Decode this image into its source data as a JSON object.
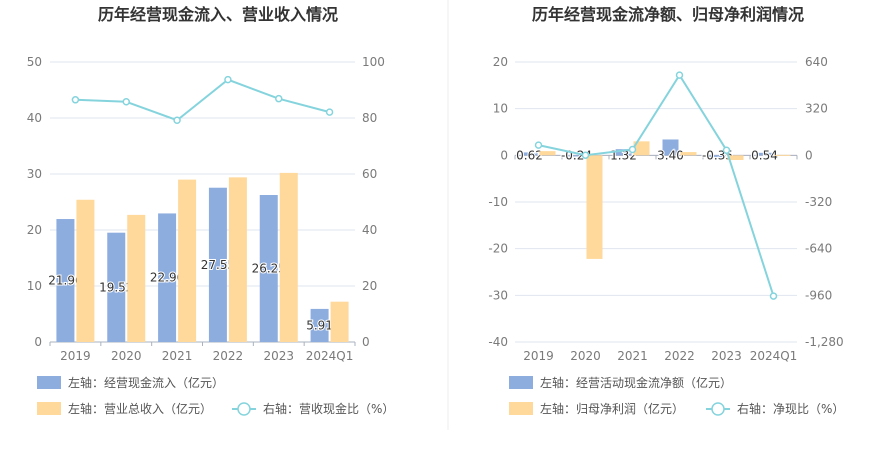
{
  "colors": {
    "bar_blue": "#8eaddf",
    "bar_orange": "#ffd99b",
    "line_cyan": "#85d4dd",
    "grid": "#dfe4ef",
    "axis": "#aab1bf"
  },
  "chart_data": [
    {
      "type": "bar",
      "title": "历年经营现金流入、营业收入情况",
      "categories": [
        "2019",
        "2020",
        "2021",
        "2022",
        "2023",
        "2024Q1"
      ],
      "left_ylim": [
        0,
        50
      ],
      "left_ticks": [
        "0",
        "10",
        "20",
        "30",
        "40",
        "50"
      ],
      "right_ylim": [
        0,
        100
      ],
      "right_ticks": [
        "0",
        "20",
        "40",
        "60",
        "80",
        "100"
      ],
      "grid": true,
      "legend_position": "bottom",
      "series": [
        {
          "name": "左轴：经营现金流入（亿元）",
          "kind": "bar",
          "axis": "left",
          "color": "#8eaddf",
          "values": [
            21.96,
            19.52,
            22.96,
            27.55,
            26.25,
            5.91
          ],
          "labels": [
            "21.96",
            "19.52",
            "22.96",
            "27.55",
            "26.25",
            "5.91"
          ]
        },
        {
          "name": "左轴：营业总收入（亿元）",
          "kind": "bar",
          "axis": "left",
          "color": "#ffd99b",
          "values": [
            25.4,
            22.7,
            29.0,
            29.4,
            30.2,
            7.2
          ]
        },
        {
          "name": "右轴：营收现金比（%）",
          "kind": "line",
          "axis": "right",
          "color": "#85d4dd",
          "values": [
            86.5,
            85.8,
            79.2,
            93.7,
            86.9,
            82.1
          ]
        }
      ]
    },
    {
      "type": "bar",
      "title": "历年经营现金流净额、归母净利润情况",
      "categories": [
        "2019",
        "2020",
        "2021",
        "2022",
        "2023",
        "2024Q1"
      ],
      "left_ylim": [
        -40,
        20
      ],
      "left_ticks": [
        "-40",
        "-30",
        "-20",
        "-10",
        "0",
        "10",
        "20"
      ],
      "right_ylim": [
        -1280,
        640
      ],
      "right_ticks": [
        "-1,280",
        "-960",
        "-640",
        "-320",
        "0",
        "320",
        "640"
      ],
      "grid": true,
      "legend_position": "bottom",
      "series": [
        {
          "name": "左轴：经营活动现金流净额（亿元）",
          "kind": "bar",
          "axis": "left",
          "color": "#8eaddf",
          "values": [
            0.62,
            -0.24,
            1.32,
            3.4,
            -0.35,
            0.54
          ],
          "labels": [
            "0.62",
            "-0.24",
            "1.32",
            "3.40",
            "-0.35",
            "0.54"
          ]
        },
        {
          "name": "左轴：归母净利润（亿元）",
          "kind": "bar",
          "axis": "left",
          "color": "#ffd99b",
          "values": [
            0.9,
            -22.2,
            3.0,
            0.7,
            -1.0,
            0.1
          ]
        },
        {
          "name": "右轴：净现比（%）",
          "kind": "line",
          "axis": "right",
          "color": "#85d4dd",
          "values": [
            70,
            1,
            40,
            550,
            35,
            -965
          ]
        }
      ]
    }
  ]
}
